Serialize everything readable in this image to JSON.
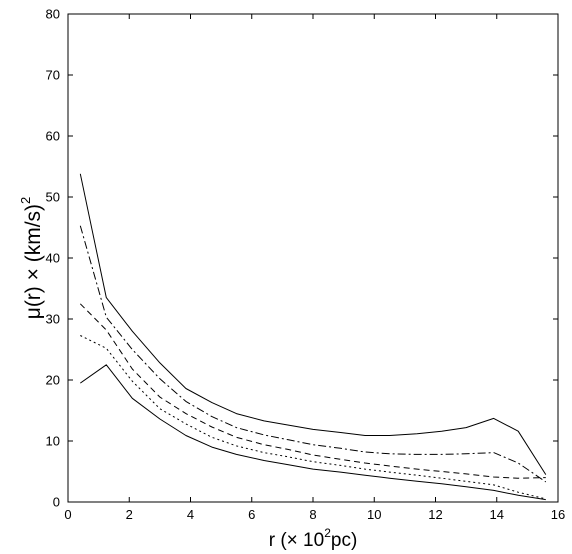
{
  "chart_data": {
    "type": "line",
    "xlabel": {
      "pre": "r (",
      "times": "×",
      "mid": " 10",
      "sup": "2",
      "post": "pc)"
    },
    "ylabel": {
      "pre": "μ(r) ",
      "times": "×",
      "mid": " (km/s)",
      "sup": "2"
    },
    "xlim": [
      0,
      16
    ],
    "ylim": [
      0,
      80
    ],
    "xticks": [
      0,
      2,
      4,
      6,
      8,
      10,
      12,
      14,
      16
    ],
    "yticks": [
      0,
      10,
      20,
      30,
      40,
      50,
      60,
      70,
      80
    ],
    "grid": false,
    "legend": "none",
    "series": [
      {
        "style": "solid",
        "x": [
          0.4,
          1.25,
          2.1,
          3.0,
          3.85,
          4.7,
          5.5,
          6.4,
          7.2,
          8.0,
          8.9,
          9.7,
          10.5,
          11.4,
          12.2,
          13.0,
          13.9,
          14.7,
          15.6
        ],
        "y": [
          53.8,
          33.5,
          28.0,
          22.8,
          18.6,
          16.3,
          14.5,
          13.3,
          12.6,
          11.9,
          11.4,
          10.9,
          10.9,
          11.2,
          11.6,
          12.2,
          13.7,
          11.6,
          4.5
        ]
      },
      {
        "style": "dashdot",
        "x": [
          0.4,
          1.25,
          2.1,
          3.0,
          3.85,
          4.7,
          5.5,
          6.4,
          7.2,
          8.0,
          8.9,
          9.7,
          10.5,
          11.4,
          12.2,
          13.0,
          13.9,
          14.7,
          15.6
        ],
        "y": [
          45.3,
          30.3,
          25.0,
          20.2,
          16.5,
          14.0,
          12.2,
          11.0,
          10.2,
          9.4,
          8.8,
          8.2,
          7.9,
          7.8,
          7.8,
          7.9,
          8.1,
          6.4,
          3.3
        ]
      },
      {
        "style": "dashed",
        "x": [
          0.4,
          1.25,
          2.1,
          3.0,
          3.85,
          4.7,
          5.5,
          6.4,
          7.2,
          8.0,
          8.9,
          9.7,
          10.5,
          11.4,
          12.2,
          13.0,
          13.9,
          14.7,
          15.6
        ],
        "y": [
          32.5,
          28.2,
          21.8,
          17.2,
          14.5,
          12.3,
          10.6,
          9.4,
          8.6,
          7.7,
          7.0,
          6.4,
          5.9,
          5.4,
          5.0,
          4.6,
          4.1,
          3.9,
          4.0
        ]
      },
      {
        "style": "dotted",
        "x": [
          0.4,
          1.25,
          2.1,
          3.0,
          3.85,
          4.7,
          5.5,
          6.4,
          7.2,
          8.0,
          8.9,
          9.7,
          10.5,
          11.4,
          12.2,
          13.0,
          13.9,
          14.7,
          15.6
        ],
        "y": [
          27.3,
          25.2,
          19.8,
          15.3,
          12.8,
          10.6,
          9.2,
          8.1,
          7.4,
          6.6,
          6.0,
          5.4,
          4.9,
          4.4,
          3.9,
          3.4,
          2.8,
          1.6,
          0.5
        ]
      },
      {
        "style": "solid",
        "x": [
          0.4,
          1.25,
          2.1,
          3.0,
          3.85,
          4.7,
          5.5,
          6.4,
          7.2,
          8.0,
          8.9,
          9.7,
          10.5,
          11.4,
          12.2,
          13.0,
          13.9,
          14.7,
          15.6
        ],
        "y": [
          19.5,
          22.5,
          17.0,
          13.6,
          10.9,
          9.0,
          7.8,
          6.8,
          6.1,
          5.4,
          4.9,
          4.4,
          3.9,
          3.4,
          3.0,
          2.5,
          1.9,
          1.1,
          0.4
        ]
      }
    ]
  }
}
